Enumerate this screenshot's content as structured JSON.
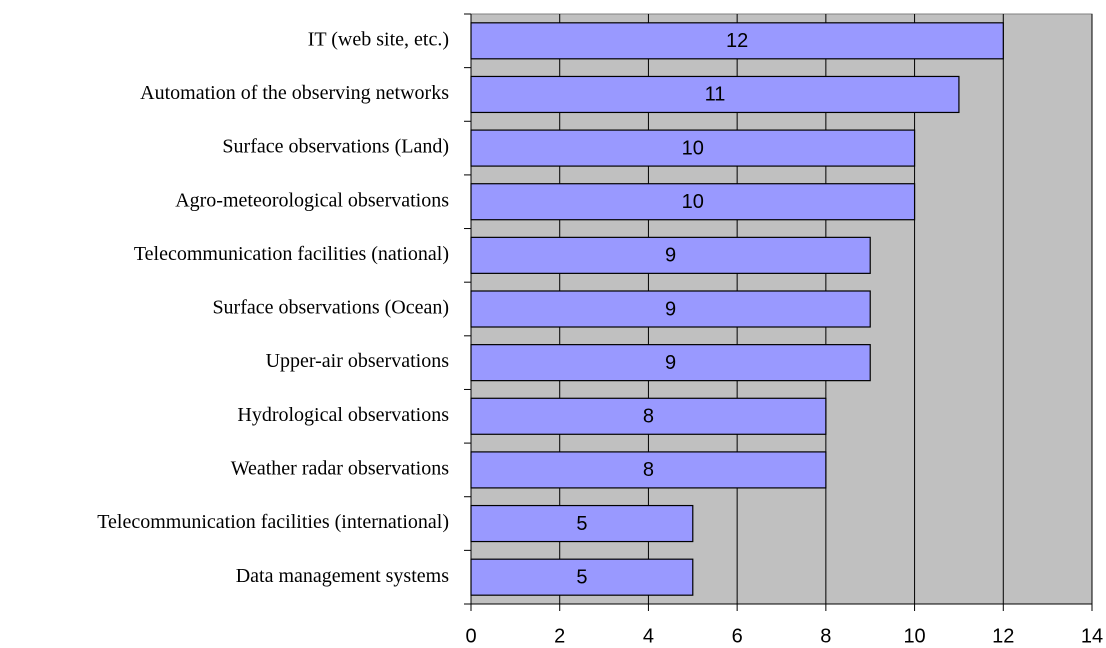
{
  "chart_data": {
    "type": "bar",
    "orientation": "horizontal",
    "categories": [
      "IT (web site, etc.)",
      "Automation of the observing networks",
      "Surface observations (Land)",
      "Agro-meteorological observations",
      "Telecommunication facilities (national)",
      "Surface observations (Ocean)",
      "Upper-air observations",
      "Hydrological observations",
      "Weather radar observations",
      "Telecommunication facilities (international)",
      "Data management systems"
    ],
    "values": [
      12,
      11,
      10,
      10,
      9,
      9,
      9,
      8,
      8,
      5,
      5
    ],
    "color": "#9999ff",
    "plot_background": "#c0c0c0",
    "xlim": [
      0,
      14
    ],
    "xticks": [
      0,
      2,
      4,
      6,
      8,
      10,
      12,
      14
    ],
    "grid": true
  }
}
